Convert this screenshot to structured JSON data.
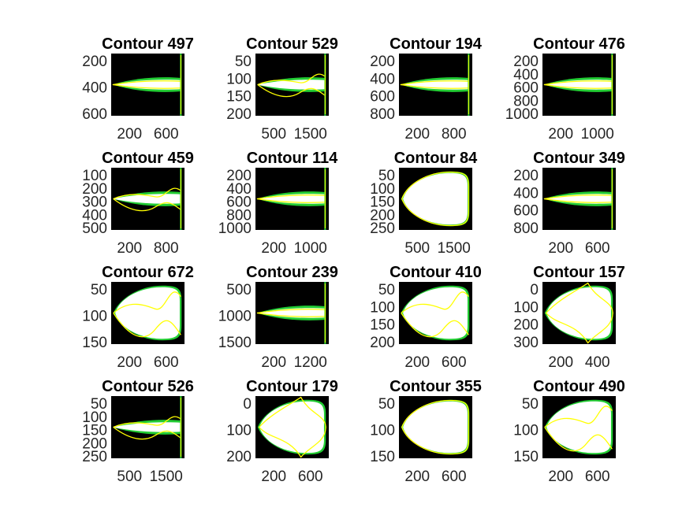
{
  "figure": {
    "background": "#ffffff",
    "axes_background": "#000000"
  },
  "colors": {
    "outer_contour": "#22cc33",
    "fill": "#ffffff",
    "overlay": "#ffff00"
  },
  "chart_data": [
    {
      "type": "image",
      "title": "Contour 497",
      "xticks": [
        "200",
        "600"
      ],
      "yticks": [
        "200",
        "400",
        "600"
      ],
      "xlim": [
        1,
        900
      ],
      "ylim": [
        1,
        800
      ],
      "shape": "spindle",
      "overlay": "inner"
    },
    {
      "type": "image",
      "title": "Contour 529",
      "xticks": [
        "500",
        "1500"
      ],
      "yticks": [
        "50",
        "100",
        "150",
        "200"
      ],
      "xlim": [
        1,
        1700
      ],
      "ylim": [
        1,
        230
      ],
      "shape": "spindle",
      "overlay": "wavy"
    },
    {
      "type": "image",
      "title": "Contour 194",
      "xticks": [
        "200",
        "800"
      ],
      "yticks": [
        "200",
        "400",
        "600",
        "800"
      ],
      "xlim": [
        1,
        1000
      ],
      "ylim": [
        1,
        900
      ],
      "shape": "spindle",
      "overlay": "inner"
    },
    {
      "type": "image",
      "title": "Contour 476",
      "xticks": [
        "200",
        "1000"
      ],
      "yticks": [
        "200",
        "400",
        "600",
        "800",
        "1000"
      ],
      "xlim": [
        1,
        1200
      ],
      "ylim": [
        1,
        1100
      ],
      "shape": "spindle",
      "overlay": "inner"
    },
    {
      "type": "image",
      "title": "Contour 459",
      "xticks": [
        "200",
        "800"
      ],
      "yticks": [
        "100",
        "200",
        "300",
        "400",
        "500"
      ],
      "xlim": [
        1,
        1000
      ],
      "ylim": [
        1,
        550
      ],
      "shape": "spindle",
      "overlay": "wavy"
    },
    {
      "type": "image",
      "title": "Contour 114",
      "xticks": [
        "200",
        "1000"
      ],
      "yticks": [
        "200",
        "400",
        "600",
        "800",
        "1000"
      ],
      "xlim": [
        1,
        1300
      ],
      "ylim": [
        1,
        1100
      ],
      "shape": "spindle",
      "overlay": "inner"
    },
    {
      "type": "image",
      "title": "Contour 84",
      "xticks": [
        "500",
        "1500"
      ],
      "yticks": [
        "50",
        "100",
        "150",
        "200",
        "250"
      ],
      "xlim": [
        1,
        1750
      ],
      "ylim": [
        1,
        270
      ],
      "shape": "bullet",
      "overlay": "inner"
    },
    {
      "type": "image",
      "title": "Contour 349",
      "xticks": [
        "200",
        "600"
      ],
      "yticks": [
        "200",
        "400",
        "600",
        "800"
      ],
      "xlim": [
        1,
        900
      ],
      "ylim": [
        1,
        870
      ],
      "shape": "spindle",
      "overlay": "inner"
    },
    {
      "type": "image",
      "title": "Contour 672",
      "xticks": [
        "200",
        "600"
      ],
      "yticks": [
        "50",
        "100",
        "150"
      ],
      "xlim": [
        1,
        850
      ],
      "ylim": [
        1,
        150
      ],
      "shape": "bullet",
      "overlay": "wavy"
    },
    {
      "type": "image",
      "title": "Contour 239",
      "xticks": [
        "200",
        "1200"
      ],
      "yticks": [
        "500",
        "1000",
        "1500"
      ],
      "xlim": [
        1,
        1500
      ],
      "ylim": [
        1,
        1750
      ],
      "shape": "spindle",
      "overlay": "inner"
    },
    {
      "type": "image",
      "title": "Contour 410",
      "xticks": [
        "200",
        "600"
      ],
      "yticks": [
        "50",
        "100",
        "150",
        "200"
      ],
      "xlim": [
        1,
        800
      ],
      "ylim": [
        1,
        220
      ],
      "shape": "bullet",
      "overlay": "wavy"
    },
    {
      "type": "image",
      "title": "Contour 157",
      "xticks": [
        "200",
        "400"
      ],
      "yticks": [
        "0",
        "100",
        "200",
        "300"
      ],
      "xlim": [
        -30,
        530
      ],
      "ylim": [
        -20,
        330
      ],
      "shape": "bullet",
      "overlay": "diamond"
    },
    {
      "type": "image",
      "title": "Contour 526",
      "xticks": [
        "500",
        "1500"
      ],
      "yticks": [
        "50",
        "100",
        "150",
        "200",
        "250"
      ],
      "xlim": [
        1,
        1750
      ],
      "ylim": [
        1,
        270
      ],
      "shape": "spindle",
      "overlay": "wavy"
    },
    {
      "type": "image",
      "title": "Contour 179",
      "xticks": [
        "200",
        "600"
      ],
      "yticks": [
        "0",
        "100",
        "200"
      ],
      "xlim": [
        -30,
        900
      ],
      "ylim": [
        -20,
        300
      ],
      "shape": "bullet",
      "overlay": "diamond"
    },
    {
      "type": "image",
      "title": "Contour 355",
      "xticks": [
        "200",
        "600"
      ],
      "yticks": [
        "50",
        "100",
        "150"
      ],
      "xlim": [
        1,
        850
      ],
      "ylim": [
        1,
        190
      ],
      "shape": "bullet",
      "overlay": "inner"
    },
    {
      "type": "image",
      "title": "Contour 490",
      "xticks": [
        "200",
        "600"
      ],
      "yticks": [
        "50",
        "100",
        "150"
      ],
      "xlim": [
        1,
        780
      ],
      "ylim": [
        1,
        190
      ],
      "shape": "bullet",
      "overlay": "wavy"
    }
  ]
}
